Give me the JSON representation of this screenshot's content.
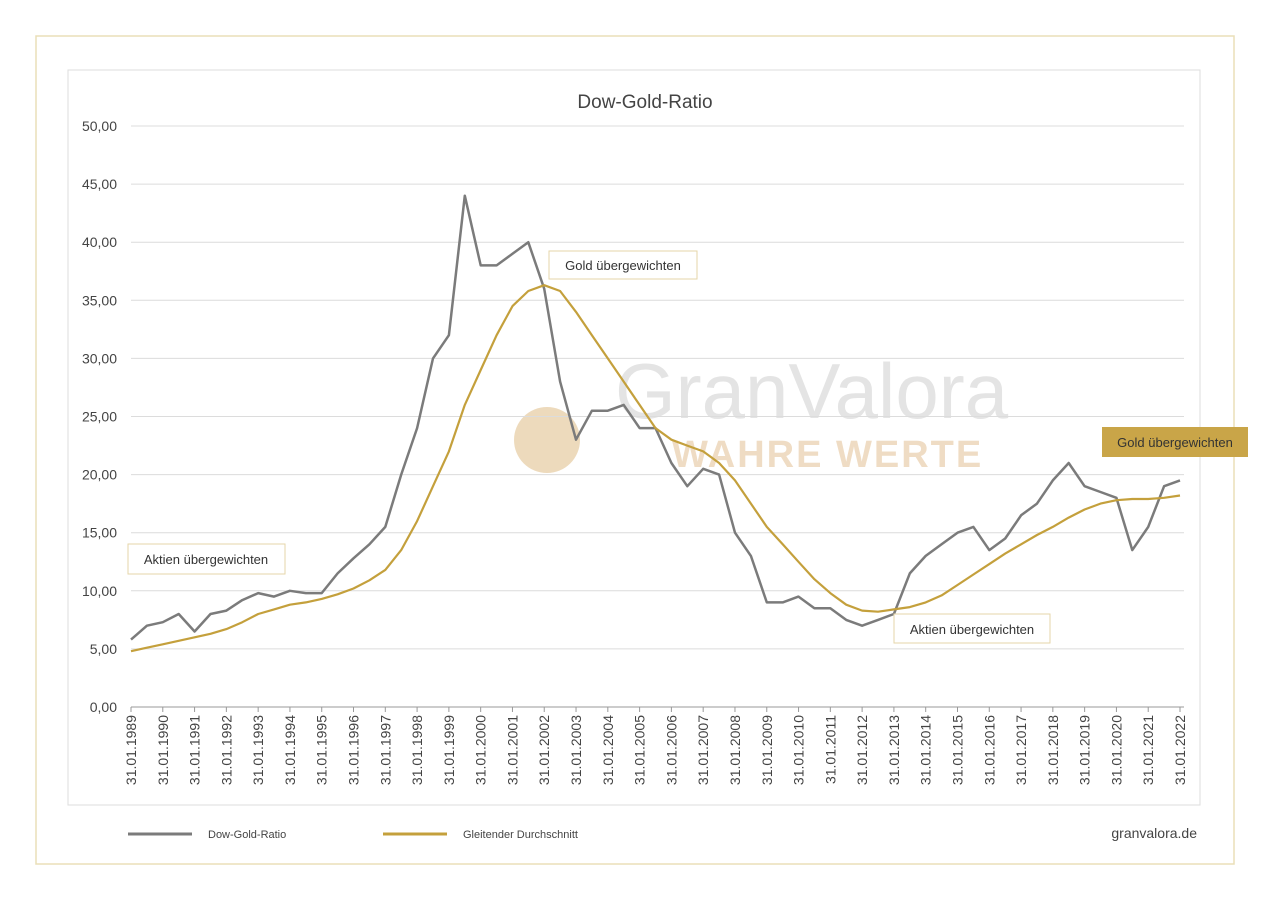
{
  "chart_data": {
    "type": "line",
    "title": "Dow-Gold-Ratio",
    "x": [
      "31.01.1989",
      "31.07.1989",
      "31.01.1990",
      "31.07.1990",
      "31.01.1991",
      "31.07.1991",
      "31.01.1992",
      "31.07.1992",
      "31.01.1993",
      "31.07.1993",
      "31.01.1994",
      "31.07.1994",
      "31.01.1995",
      "31.07.1995",
      "31.01.1996",
      "31.07.1996",
      "31.01.1997",
      "31.07.1997",
      "31.01.1998",
      "31.07.1998",
      "31.01.1999",
      "31.07.1999",
      "31.01.2000",
      "31.07.2000",
      "31.01.2001",
      "31.07.2001",
      "31.01.2002",
      "31.07.2002",
      "31.01.2003",
      "31.07.2003",
      "31.01.2004",
      "31.07.2004",
      "31.01.2005",
      "31.07.2005",
      "31.01.2006",
      "31.07.2006",
      "31.01.2007",
      "31.07.2007",
      "31.01.2008",
      "31.07.2008",
      "31.01.2009",
      "31.07.2009",
      "31.01.2010",
      "31.07.2010",
      "31.01.2011",
      "31.07.2011",
      "31.01.2012",
      "31.07.2012",
      "31.01.2013",
      "31.07.2013",
      "31.01.2014",
      "31.07.2014",
      "31.01.2015",
      "31.07.2015",
      "31.01.2016",
      "31.07.2016",
      "31.01.2017",
      "31.07.2017",
      "31.01.2018",
      "31.07.2018",
      "31.01.2019",
      "31.07.2019",
      "31.01.2020",
      "31.07.2020",
      "31.01.2021",
      "31.07.2021",
      "31.01.2022"
    ],
    "series": [
      {
        "name": "Dow-Gold-Ratio",
        "color": "#7b7b7b",
        "values": [
          5.8,
          7.0,
          7.3,
          8.0,
          6.5,
          8.0,
          8.3,
          9.2,
          9.8,
          9.5,
          10.0,
          9.8,
          9.8,
          11.5,
          12.8,
          14.0,
          15.5,
          20.0,
          24.0,
          30.0,
          32.0,
          44.0,
          38.0,
          38.0,
          39.0,
          40.0,
          36.0,
          28.0,
          23.0,
          25.5,
          25.5,
          26.0,
          24.0,
          24.0,
          21.0,
          19.0,
          20.5,
          20.0,
          15.0,
          13.0,
          9.0,
          9.0,
          9.5,
          8.5,
          8.5,
          7.5,
          7.0,
          7.5,
          8.0,
          11.5,
          13.0,
          14.0,
          15.0,
          15.5,
          13.5,
          14.5,
          16.5,
          17.5,
          19.5,
          21.0,
          19.0,
          18.5,
          18.0,
          13.5,
          15.5,
          19.0,
          19.5
        ]
      },
      {
        "name": "Gleitender Durchschnitt",
        "color": "#c4a03c",
        "values": [
          4.8,
          5.1,
          5.4,
          5.7,
          6.0,
          6.3,
          6.7,
          7.3,
          8.0,
          8.4,
          8.8,
          9.0,
          9.3,
          9.7,
          10.2,
          10.9,
          11.8,
          13.5,
          16.0,
          19.0,
          22.0,
          26.0,
          29.0,
          32.0,
          34.5,
          35.8,
          36.3,
          35.8,
          34.0,
          32.0,
          30.0,
          28.0,
          26.0,
          24.0,
          23.0,
          22.5,
          22.0,
          21.0,
          19.5,
          17.5,
          15.5,
          14.0,
          12.5,
          11.0,
          9.8,
          8.8,
          8.3,
          8.2,
          8.4,
          8.6,
          9.0,
          9.6,
          10.5,
          11.4,
          12.3,
          13.2,
          14.0,
          14.8,
          15.5,
          16.3,
          17.0,
          17.5,
          17.8,
          17.9,
          17.9,
          18.0,
          18.2
        ]
      }
    ],
    "xticks": [
      "31.01.1989",
      "31.01.1990",
      "31.01.1991",
      "31.01.1992",
      "31.01.1993",
      "31.01.1994",
      "31.01.1995",
      "31.01.1996",
      "31.01.1997",
      "31.01.1998",
      "31.01.1999",
      "31.01.2000",
      "31.01.2001",
      "31.01.2002",
      "31.01.2003",
      "31.01.2004",
      "31.01.2005",
      "31.01.2006",
      "31.01.2007",
      "31.01.2008",
      "31.01.2009",
      "31.01.2010",
      "31.01.2011",
      "31.01.2012",
      "31.01.2013",
      "31.01.2014",
      "31.01.2015",
      "31.01.2016",
      "31.01.2017",
      "31.01.2018",
      "31.01.2019",
      "31.01.2020",
      "31.01.2021",
      "31.01.2022"
    ],
    "ylim": [
      0,
      50
    ],
    "yticks": [
      {
        "value": 0,
        "label": "0,00"
      },
      {
        "value": 5,
        "label": "5,00"
      },
      {
        "value": 10,
        "label": "10,00"
      },
      {
        "value": 15,
        "label": "15,00"
      },
      {
        "value": 20,
        "label": "20,00"
      },
      {
        "value": 25,
        "label": "25,00"
      },
      {
        "value": 30,
        "label": "30,00"
      },
      {
        "value": 35,
        "label": "35,00"
      },
      {
        "value": 40,
        "label": "40,00"
      },
      {
        "value": 45,
        "label": "45,00"
      },
      {
        "value": 50,
        "label": "50,00"
      }
    ],
    "grid": true,
    "annotations": [
      "Gold übergewichten",
      "Aktien übergewichten",
      "Aktien übergewichten",
      "Gold übergewichten"
    ],
    "watermark": [
      "GranValora",
      "WAHRE WERTE"
    ],
    "source": "granvalora.de"
  }
}
